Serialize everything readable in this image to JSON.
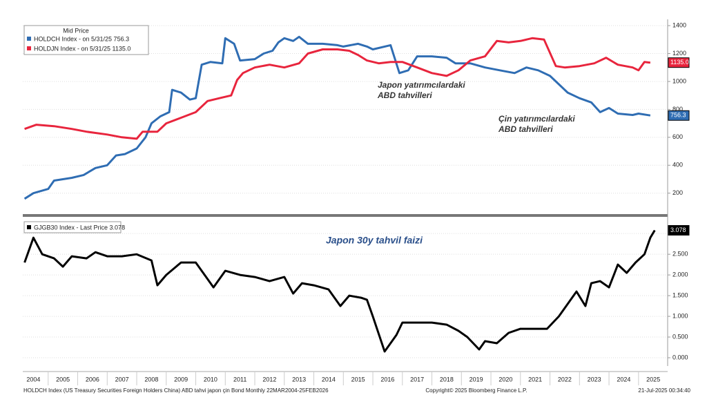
{
  "chart_data": [
    {
      "type": "line",
      "legend_title": "Mid Price",
      "xlim": [
        2004.14,
        2025.94
      ],
      "ylim": [
        60,
        1445
      ],
      "yticks": [
        200,
        400,
        600,
        800,
        1000,
        1200,
        1400
      ],
      "grid": true,
      "annotations": [
        "Japon yatırımcılardaki",
        "ABD tahvilleri",
        "Çin yatırımcılardaki",
        "ABD tahvilleri"
      ],
      "series": [
        {
          "name": "HOLDCH Index - on 5/31/25 756.3",
          "color": "#2f6db3",
          "x": [
            2004.2,
            2004.5,
            2005.0,
            2005.2,
            2005.8,
            2006.2,
            2006.6,
            2007.0,
            2007.3,
            2007.6,
            2008.0,
            2008.3,
            2008.5,
            2008.8,
            2009.1,
            2009.2,
            2009.5,
            2009.8,
            2010.0,
            2010.2,
            2010.5,
            2010.9,
            2011.0,
            2011.3,
            2011.5,
            2012.0,
            2012.3,
            2012.6,
            2012.8,
            2013.0,
            2013.3,
            2013.5,
            2013.8,
            2014.3,
            2014.8,
            2015.0,
            2015.5,
            2015.8,
            2016.0,
            2016.6,
            2016.9,
            2017.2,
            2017.5,
            2018.0,
            2018.5,
            2018.8,
            2019.3,
            2019.8,
            2020.3,
            2020.8,
            2021.2,
            2021.6,
            2022.0,
            2022.3,
            2022.6,
            2023.0,
            2023.4,
            2023.7,
            2024.0,
            2024.3,
            2024.8,
            2025.0,
            2025.4
          ],
          "values": [
            160,
            200,
            230,
            290,
            310,
            330,
            380,
            400,
            470,
            480,
            520,
            600,
            700,
            750,
            780,
            940,
            920,
            870,
            880,
            1120,
            1140,
            1130,
            1310,
            1270,
            1150,
            1160,
            1200,
            1220,
            1280,
            1310,
            1290,
            1320,
            1270,
            1270,
            1260,
            1250,
            1270,
            1250,
            1230,
            1260,
            1060,
            1080,
            1180,
            1180,
            1170,
            1130,
            1130,
            1100,
            1080,
            1060,
            1100,
            1080,
            1040,
            980,
            920,
            880,
            850,
            780,
            810,
            770,
            760,
            770,
            756.3
          ]
        },
        {
          "name": "HOLDJN Index - on 5/31/25 1135.0",
          "color": "#e8253d",
          "x": [
            2004.2,
            2004.6,
            2005.2,
            2005.8,
            2006.3,
            2007.0,
            2007.5,
            2008.0,
            2008.2,
            2008.7,
            2009.0,
            2009.5,
            2010.0,
            2010.4,
            2010.8,
            2011.2,
            2011.4,
            2011.6,
            2012.0,
            2012.5,
            2013.0,
            2013.5,
            2013.8,
            2014.3,
            2014.8,
            2015.2,
            2015.5,
            2015.8,
            2016.2,
            2016.6,
            2017.0,
            2017.5,
            2018.0,
            2018.5,
            2018.9,
            2019.3,
            2019.8,
            2020.2,
            2020.6,
            2021.0,
            2021.4,
            2021.8,
            2022.2,
            2022.5,
            2023.0,
            2023.5,
            2023.9,
            2024.3,
            2024.8,
            2025.0,
            2025.2,
            2025.4
          ],
          "values": [
            660,
            690,
            680,
            660,
            640,
            620,
            600,
            590,
            640,
            640,
            700,
            740,
            780,
            860,
            880,
            900,
            1010,
            1060,
            1100,
            1120,
            1100,
            1130,
            1200,
            1230,
            1230,
            1220,
            1190,
            1150,
            1130,
            1140,
            1140,
            1100,
            1060,
            1040,
            1080,
            1150,
            1180,
            1290,
            1280,
            1290,
            1310,
            1300,
            1110,
            1100,
            1110,
            1130,
            1170,
            1120,
            1100,
            1080,
            1140,
            1135
          ],
          "value_labels": [
            null,
            null,
            null,
            null,
            null,
            null,
            null,
            null,
            null,
            null,
            null,
            null,
            null,
            null,
            null,
            null,
            null,
            null,
            null,
            null,
            null,
            null,
            null,
            null,
            null,
            null,
            null,
            null,
            null,
            null,
            null,
            null,
            null,
            null,
            null,
            null,
            null,
            null,
            null,
            null,
            null,
            null,
            null,
            null,
            null,
            null,
            null,
            null,
            null,
            null,
            null,
            "1135.0"
          ]
        }
      ]
    },
    {
      "type": "line",
      "annotation": "Japon 30y tahvil faizi",
      "xlim": [
        2004.14,
        2025.94
      ],
      "ylim": [
        -0.2,
        3.37
      ],
      "yticks": [
        {
          "value": 0,
          "label": "0.000"
        },
        {
          "value": 0.5,
          "label": "0.500"
        },
        {
          "value": 1,
          "label": "1.000"
        },
        {
          "value": 1.5,
          "label": "1.500"
        },
        {
          "value": 2,
          "label": "2.000"
        },
        {
          "value": 2.5,
          "label": "2.500"
        },
        {
          "value": 3,
          "label": "3.000"
        }
      ],
      "xticks": [
        {
          "value": 2004.5,
          "label": "2004"
        },
        {
          "value": 2005.5,
          "label": "2005"
        },
        {
          "value": 2006.5,
          "label": "2006"
        },
        {
          "value": 2007.5,
          "label": "2007"
        },
        {
          "value": 2008.5,
          "label": "2008"
        },
        {
          "value": 2009.5,
          "label": "2009"
        },
        {
          "value": 2010.5,
          "label": "2010"
        },
        {
          "value": 2011.5,
          "label": "2011"
        },
        {
          "value": 2012.5,
          "label": "2012"
        },
        {
          "value": 2013.5,
          "label": "2013"
        },
        {
          "value": 2014.5,
          "label": "2014"
        },
        {
          "value": 2015.5,
          "label": "2015"
        },
        {
          "value": 2016.5,
          "label": "2016"
        },
        {
          "value": 2017.5,
          "label": "2017"
        },
        {
          "value": 2018.5,
          "label": "2018"
        },
        {
          "value": 2019.5,
          "label": "2019"
        },
        {
          "value": 2020.5,
          "label": "2020"
        },
        {
          "value": 2021.5,
          "label": "2021"
        },
        {
          "value": 2022.5,
          "label": "2022"
        },
        {
          "value": 2023.5,
          "label": "2023"
        },
        {
          "value": 2024.5,
          "label": "2024"
        },
        {
          "value": 2025.5,
          "label": "2025"
        }
      ],
      "grid": true,
      "series": [
        {
          "name": "GJGB30 Index - Last Price 3.078",
          "color": "#000000",
          "x": [
            2004.2,
            2004.5,
            2004.8,
            2005.2,
            2005.5,
            2005.8,
            2006.3,
            2006.6,
            2007.0,
            2007.5,
            2008.0,
            2008.5,
            2008.7,
            2009.0,
            2009.5,
            2010.0,
            2010.3,
            2010.6,
            2011.0,
            2011.5,
            2012.0,
            2012.5,
            2013.0,
            2013.3,
            2013.6,
            2014.0,
            2014.5,
            2014.9,
            2015.2,
            2015.6,
            2015.8,
            2016.0,
            2016.4,
            2016.8,
            2017.0,
            2017.5,
            2018.0,
            2018.5,
            2018.9,
            2019.2,
            2019.6,
            2019.8,
            2020.2,
            2020.6,
            2021.0,
            2021.5,
            2021.9,
            2022.3,
            2022.6,
            2022.9,
            2023.2,
            2023.4,
            2023.7,
            2024.0,
            2024.3,
            2024.6,
            2024.9,
            2025.2,
            2025.4,
            2025.55
          ],
          "values": [
            2.3,
            2.9,
            2.5,
            2.4,
            2.2,
            2.45,
            2.4,
            2.55,
            2.45,
            2.45,
            2.5,
            2.35,
            1.75,
            2.0,
            2.3,
            2.3,
            2.0,
            1.7,
            2.1,
            2.0,
            1.95,
            1.85,
            1.95,
            1.55,
            1.8,
            1.75,
            1.65,
            1.25,
            1.5,
            1.45,
            1.4,
            1.0,
            0.15,
            0.55,
            0.85,
            0.85,
            0.85,
            0.8,
            0.65,
            0.5,
            0.2,
            0.4,
            0.35,
            0.6,
            0.7,
            0.7,
            0.7,
            1.0,
            1.3,
            1.6,
            1.25,
            1.8,
            1.85,
            1.7,
            2.25,
            2.05,
            2.3,
            2.5,
            2.9,
            3.078
          ]
        }
      ]
    }
  ],
  "footer": {
    "left": "HOLDCH Index (US Treasury Securities Foreign Holders China) ABD tahvi japon çin Bond  Monthly 22MAR2004-25FEB2026",
    "center": "Copyright© 2025 Bloomberg Finance L.P.",
    "right": "21-Jul-2025 00:34:40"
  }
}
